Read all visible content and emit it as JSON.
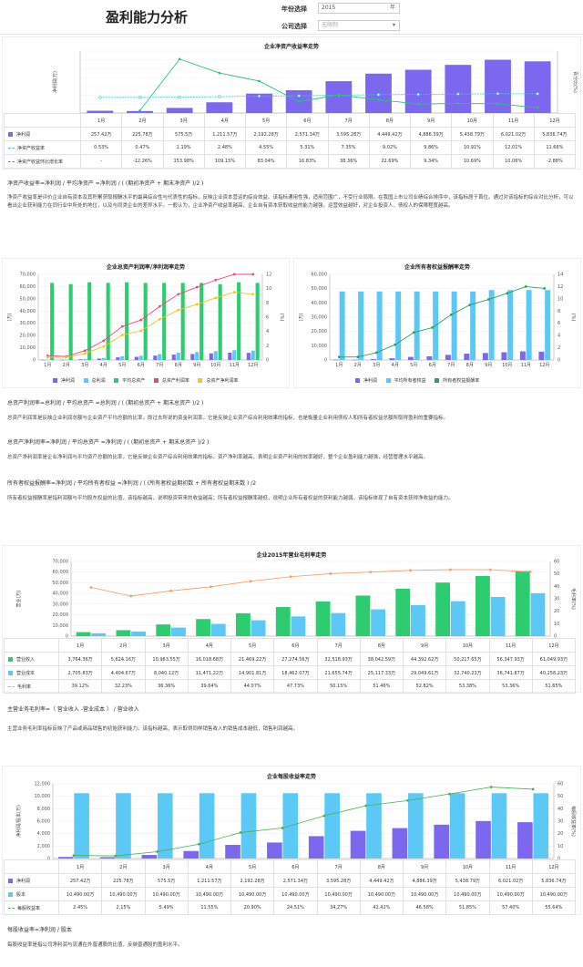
{
  "page_title": "盈利能力分析",
  "filters": {
    "year_label": "年份选择",
    "year_value": "2015",
    "year_unit": "年",
    "company_label": "公司选择",
    "company_placeholder": "无限制"
  },
  "colors": {
    "purple": "#7b68ee",
    "cyan": "#5bc8f5",
    "green": "#2ecc71",
    "teal": "#3cc",
    "pink": "#e84a7f",
    "yellow": "#f5c518",
    "orange": "#f39c6b",
    "lime": "#4caf50"
  },
  "months": [
    "1月",
    "2月",
    "3月",
    "4月",
    "5月",
    "6月",
    "7月",
    "8月",
    "9月",
    "10月",
    "11月",
    "12月"
  ],
  "months_short": [
    "1月",
    "2月",
    "3月",
    "4月",
    "5月",
    "6月",
    "7月",
    "8月",
    "9月",
    "10月",
    "11月",
    "12月"
  ],
  "roe": {
    "chart_data": {
      "type": "bar",
      "title": "企业净资产收益率走势",
      "ylabel": "净利润(万)",
      "y2label": "百分比(%)",
      "categories": [
        "1月",
        "2月",
        "3月",
        "4月",
        "5月",
        "6月",
        "7月",
        "8月",
        "9月",
        "10月",
        "11月",
        "12月"
      ],
      "series": [
        {
          "name": "净利润",
          "values": [
            257.42,
            225.78,
            575.5,
            1211.57,
            2192.28,
            2571.34,
            3595.28,
            4449.42,
            4886.39,
            5438.79,
            6021.02,
            5836.74
          ]
        },
        {
          "name": "净资产收益率",
          "values": [
            0.53,
            0.47,
            1.19,
            2.48,
            4.55,
            5.31,
            7.35,
            9.02,
            9.86,
            10.91,
            12.01,
            11.66
          ]
        },
        {
          "name": "净资产收益环比增长率",
          "values": [
            null,
            -12.26,
            153.98,
            109.15,
            83.04,
            16.83,
            38.36,
            22.69,
            9.34,
            10.69,
            10.06,
            -2.88
          ]
        }
      ]
    },
    "rows": [
      {
        "label": "净利润",
        "cells": [
          "257.42万",
          "225.78万",
          "575.5万",
          "1,211.57万",
          "2,192.28万",
          "2,571.34万",
          "3,595.28万",
          "4,449.42万",
          "4,886.39万",
          "5,438.79万",
          "6,021.02万",
          "5,836.74万"
        ]
      },
      {
        "label": "净资产收益率",
        "cells": [
          "0.53%",
          "0.47%",
          "1.19%",
          "2.48%",
          "4.55%",
          "5.31%",
          "7.35%",
          "9.02%",
          "9.86%",
          "10.91%",
          "12.01%",
          "11.66%"
        ]
      },
      {
        "label": "净资产收益环比增长率",
        "cells": [
          "-",
          "-12.26%",
          "153.98%",
          "109.15%",
          "83.04%",
          "16.83%",
          "38.36%",
          "22.69%",
          "9.34%",
          "10.69%",
          "10.06%",
          "-2.88%"
        ]
      }
    ],
    "formula": "净资产收益率=净利润 / 平均净资产 =净利润 / ( (期初净资产 + 期末净资产 )/2 )",
    "desc": "净资产收益率是评价企业自有资本及其积累获取报酬水平的最具综合性与代表性的指标，反映企业资本营运的综合效益。该指标通用性强，适用范围广，不受行业局限。在我国上市公司业绩综合排序中，该指标居于首位。通过对该指标的综合对比分析，可以看出企业获利能力在同行业中所处的地位，以及与同类企业的差异水平。一般认为，企业净资产收益率越高，企业自有资本获取收益的能力越强，运营效益越好，对企业投资人、债权人的保障程度越高。"
  },
  "roa": {
    "chart_data": {
      "type": "bar",
      "title": "企业总资产利润率/净利润率走势",
      "ylabel": "(万)",
      "y2label": "(%)",
      "ylim": [
        0,
        70000
      ],
      "y2lim": [
        0,
        12
      ],
      "categories": [
        "1月",
        "2月",
        "3月",
        "4月",
        "5月",
        "6月",
        "7月",
        "8月",
        "9月",
        "10月",
        "11月",
        "12月"
      ],
      "series": [
        {
          "name": "净利润",
          "values": [
            257,
            226,
            576,
            1212,
            2192,
            2571,
            3595,
            4449,
            4886,
            5439,
            6021,
            5837
          ]
        },
        {
          "name": "总利润",
          "values": [
            400,
            300,
            800,
            1700,
            3000,
            3500,
            4800,
            5900,
            6500,
            7200,
            8000,
            7700
          ]
        },
        {
          "name": "平均总资产",
          "values": [
            63000,
            62000,
            63500,
            63000,
            63500,
            63000,
            63000,
            63000,
            63000,
            62000,
            63500,
            63000
          ]
        },
        {
          "name": "总资产利润率",
          "values": [
            0.6,
            0.5,
            1.3,
            2.7,
            4.7,
            5.6,
            7.5,
            9.2,
            10.2,
            11.2,
            12.0,
            12.0
          ]
        },
        {
          "name": "总资产净利润率",
          "values": [
            0.4,
            0.4,
            0.9,
            1.9,
            3.5,
            4.1,
            5.7,
            7.0,
            7.8,
            8.7,
            9.5,
            9.2
          ]
        }
      ]
    },
    "formula1": "总资产利润率=总利润 / 平均总资产 =总利润 / ( (期初总资产 + 期末总资产 )/2 )",
    "desc1": "总资产利润率是反映企业利润总额与企业资产平均总额的比率，即过去所说的资金利润率。它是反映企业资产综合利用效果的指标，也是衡量企业利用债权人和所有者权益总额所取得盈利的重要指标。",
    "formula2": "总资产净利润率=净利润 / 平均总资产 =净利润 / ( (期初总资产 + 期末总资产 )/2 )",
    "desc2": "总资产净利润率是企业净利润与平均资产总额的比率，它是反映企业资产综合利用效果的指标。资产净利率越高，表明企业资产利用的效率越好，整个企业盈利能力越强，经营管理水平越高。"
  },
  "roeq": {
    "chart_data": {
      "type": "bar",
      "title": "企业所有者权益报酬率走势",
      "ylabel": "(万)",
      "y2label": "(%)",
      "ylim": [
        0,
        60000
      ],
      "y2lim": [
        0,
        14
      ],
      "categories": [
        "1月",
        "2月",
        "3月",
        "4月",
        "5月",
        "6月",
        "7月",
        "8月",
        "9月",
        "10月",
        "11月",
        "12月"
      ],
      "series": [
        {
          "name": "净利润",
          "values": [
            257,
            226,
            576,
            1212,
            2192,
            2571,
            3595,
            4449,
            4886,
            5439,
            6021,
            5837
          ]
        },
        {
          "name": "平均所有者权益",
          "values": [
            48000,
            48000,
            48000,
            48000,
            48000,
            48000,
            48000,
            48000,
            49000,
            49000,
            49000,
            49000
          ]
        },
        {
          "name": "所有者权益报酬率",
          "values": [
            0.5,
            0.5,
            1.2,
            2.5,
            4.5,
            5.3,
            7.4,
            9.0,
            9.9,
            10.9,
            12.0,
            11.7
          ]
        }
      ]
    },
    "formula": "所有者权益报酬率=净利润 / 平均所有者权益 =净利润 / ( (所有者权益期初数 + 所有者权益期末数 ) /2",
    "desc": "所有者权益报酬率是指利润额与平均股东权益的比值，该指标越高，说明投资带来的收益越高；所有者权益报酬率越低，说明企业所有者权益的获利能力越弱。该指标体现了自有资本获得净收益的能力。"
  },
  "gm": {
    "chart_data": {
      "type": "bar",
      "title": "企业2015年营业毛利率走势",
      "ylabel": "营业(万)",
      "y2label": "毛利率(%)",
      "ylim": [
        0,
        70000
      ],
      "y2lim": [
        0,
        60
      ],
      "categories": [
        "1月",
        "2月",
        "3月",
        "4月",
        "5月",
        "6月",
        "7月",
        "8月",
        "9月",
        "10月",
        "11月",
        "12月"
      ],
      "series": [
        {
          "name": "营业收入",
          "values": [
            3764.36,
            5624.16,
            10963.55,
            16018.68,
            21469.22,
            27274.56,
            32518.93,
            38042.59,
            44392.62,
            50217.65,
            56347.93,
            61049.93
          ]
        },
        {
          "name": "营业成本",
          "values": [
            2705.83,
            4404.67,
            8040.12,
            11471.22,
            14901.81,
            18462.07,
            21655.74,
            25117.33,
            29049.61,
            32740.23,
            36741.87,
            40258.23
          ]
        },
        {
          "name": "毛利率",
          "values": [
            39.12,
            32.23,
            36.36,
            39.64,
            44.07,
            47.73,
            50.15,
            51.46,
            52.82,
            53.38,
            53.36,
            51.65
          ]
        }
      ]
    },
    "rows": [
      {
        "label": "营业收入",
        "cells": [
          "3,764.36万",
          "5,624.16万",
          "10,963.55万",
          "16,018.68万",
          "21,469.22万",
          "27,274.56万",
          "32,518.93万",
          "38,042.59万",
          "44,392.62万",
          "50,217.65万",
          "56,347.93万",
          "61,049.93万"
        ]
      },
      {
        "label": "营业成本",
        "cells": [
          "2,705.83万",
          "4,404.67万",
          "8,040.12万",
          "11,471.22万",
          "14,901.81万",
          "18,462.07万",
          "21,655.74万",
          "25,117.33万",
          "29,049.61万",
          "32,740.23万",
          "36,741.87万",
          "40,258.23万"
        ]
      },
      {
        "label": "毛利率",
        "cells": [
          "39.12%",
          "32.23%",
          "36.36%",
          "39.64%",
          "44.07%",
          "47.73%",
          "50.15%",
          "51.46%",
          "52.82%",
          "53.38%",
          "53.36%",
          "51.65%"
        ]
      }
    ],
    "formula": "主营业务毛利率=（ 营业收入 -营业成本 ） / 营业收入",
    "desc": "主营业务毛利率指标反映了产品或商品销售的初始获利能力。该指标越高，表示取得同样销售收入的销售成本越低，销售利润越高。"
  },
  "eps": {
    "chart_data": {
      "type": "bar",
      "title": "企业每股收益率走势",
      "ylabel": "净利润/股本(万)",
      "y2label": "每股收益率(%)",
      "ylim": [
        0,
        12000
      ],
      "y2lim": [
        0,
        60
      ],
      "categories": [
        "1月",
        "2月",
        "3月",
        "4月",
        "5月",
        "6月",
        "7月",
        "8月",
        "9月",
        "10月",
        "11月",
        "12月"
      ],
      "series": [
        {
          "name": "净利润",
          "values": [
            257.42,
            225.78,
            575.5,
            1211.57,
            2192.28,
            2571.34,
            3595.28,
            4449.42,
            4886.39,
            5438.79,
            6021.02,
            5836.74
          ]
        },
        {
          "name": "股本",
          "values": [
            10490,
            10490,
            10490,
            10490,
            10490,
            10490,
            10490,
            10490,
            10490,
            10490,
            10490,
            10490
          ]
        },
        {
          "name": "每股收益率",
          "values": [
            2.45,
            2.15,
            5.49,
            11.55,
            20.9,
            24.51,
            34.27,
            42.42,
            46.58,
            51.85,
            57.4,
            55.64
          ]
        }
      ]
    },
    "rows": [
      {
        "label": "净利润",
        "cells": [
          "257.42万",
          "225.78万",
          "575.5万",
          "1,211.57万",
          "2,192.28万",
          "2,571.34万",
          "3,595.28万",
          "4,449.42万",
          "4,886.39万",
          "5,438.79万",
          "6,021.02万",
          "5,836.74万"
        ]
      },
      {
        "label": "股本",
        "cells": [
          "10,490.00万",
          "10,490.00万",
          "10,490.00万",
          "10,490.00万",
          "10,490.00万",
          "10,490.00万",
          "10,490.00万",
          "10,490.00万",
          "10,490.00万",
          "10,490.00万",
          "10,490.00万",
          "10,490.00万"
        ]
      },
      {
        "label": "每股收益率",
        "cells": [
          "2.45%",
          "2.15%",
          "5.49%",
          "11.55%",
          "20.90%",
          "24.51%",
          "34.27%",
          "42.42%",
          "46.58%",
          "51.85%",
          "57.40%",
          "55.64%"
        ]
      }
    ],
    "formula": "每股收益率=净利润 / 股本",
    "desc": "每股收益率是指公司净利润与流通在外普通股的比值，反映普通股的盈利水平。"
  }
}
